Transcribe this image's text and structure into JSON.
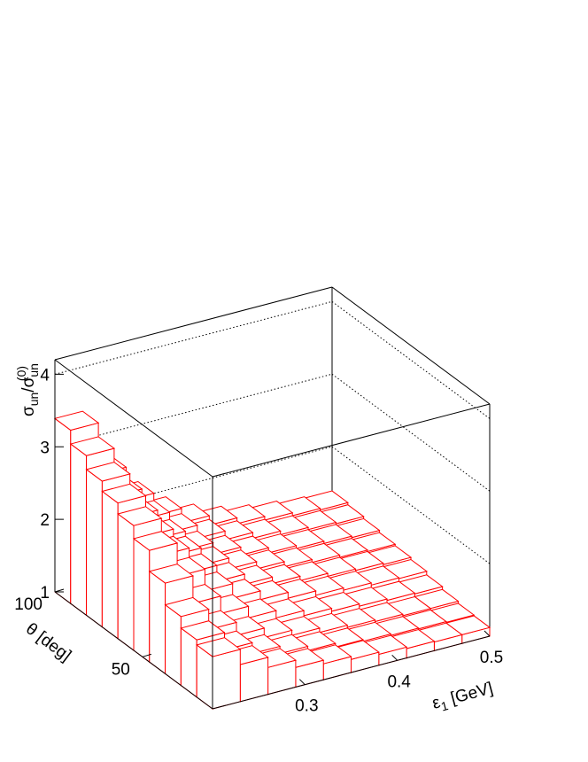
{
  "chart_data": {
    "type": "lego",
    "x_label": [
      "ε",
      "1",
      " [GeV]"
    ],
    "y_label": "θ [deg]",
    "z_label": [
      "σ",
      "un",
      "/σ",
      "un",
      "(0)"
    ],
    "color": "#ff0000",
    "x_bins": [
      0.2,
      0.23,
      0.26,
      0.29,
      0.32,
      0.35,
      0.38,
      0.41,
      0.44,
      0.47,
      0.5
    ],
    "y_bins": [
      10,
      19,
      28,
      37,
      46,
      55,
      64,
      73,
      82,
      91,
      100
    ],
    "values": [
      [
        1.72,
        1.51,
        1.37,
        1.27,
        1.22,
        1.18,
        1.15,
        1.13,
        1.12,
        1.12
      ],
      [
        1.79,
        1.55,
        1.4,
        1.3,
        1.24,
        1.19,
        1.17,
        1.15,
        1.14,
        1.13
      ],
      [
        1.95,
        1.67,
        1.49,
        1.36,
        1.29,
        1.23,
        1.2,
        1.18,
        1.16,
        1.16
      ],
      [
        2.25,
        1.87,
        1.63,
        1.47,
        1.37,
        1.3,
        1.26,
        1.23,
        1.21,
        1.2
      ],
      [
        2.54,
        2.08,
        1.78,
        1.58,
        1.46,
        1.38,
        1.32,
        1.29,
        1.26,
        1.25
      ],
      [
        2.72,
        2.21,
        1.87,
        1.65,
        1.51,
        1.42,
        1.36,
        1.32,
        1.3,
        1.28
      ],
      [
        2.87,
        2.31,
        1.95,
        1.71,
        1.56,
        1.46,
        1.39,
        1.35,
        1.32,
        1.3
      ],
      [
        3.01,
        2.41,
        2.02,
        1.76,
        1.6,
        1.49,
        1.42,
        1.38,
        1.35,
        1.33
      ],
      [
        3.2,
        2.54,
        2.12,
        1.84,
        1.66,
        1.54,
        1.46,
        1.41,
        1.38,
        1.36
      ],
      [
        3.39,
        2.68,
        2.22,
        1.91,
        1.71,
        1.58,
        1.5,
        1.45,
        1.41,
        1.39
      ]
    ],
    "xlim": [
      0.2,
      0.5
    ],
    "xticks": [
      0.3,
      0.4,
      0.5
    ],
    "ylim": [
      10,
      100
    ],
    "yticks": [
      50,
      100
    ],
    "zlim": [
      1,
      4.2
    ],
    "zticks": [
      1,
      2,
      3,
      4
    ],
    "grid": true
  }
}
